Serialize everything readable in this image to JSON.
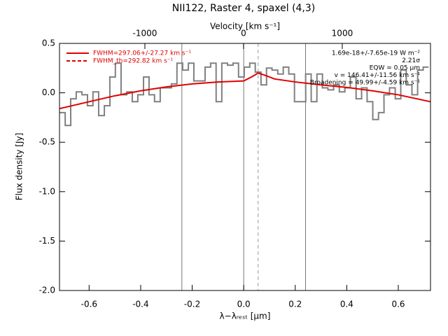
{
  "chart_data": {
    "type": "step",
    "title": "NII122, Raster 4, spaxel (4,3)",
    "xlabel": "λ−λᵣₑₛₜ [μm]",
    "ylabel": "Flux density [Jy]",
    "x2label": "Velocity [km s⁻¹]",
    "xlim": [
      -0.715,
      0.725
    ],
    "xticks": [
      -0.6,
      -0.4,
      -0.2,
      {
        "value": 0,
        "label": "0.0"
      },
      0.2,
      0.4,
      0.6
    ],
    "ylim": [
      -2.0,
      0.5
    ],
    "yticks": [
      0.5,
      {
        "value": 0,
        "label": "0.0"
      },
      -0.5,
      {
        "value": -1,
        "label": "-1.0"
      },
      -1.5,
      {
        "value": -2,
        "label": "-2.0"
      }
    ],
    "x2lim": [
      -1865,
      1894
    ],
    "x2ticks": [
      -1000,
      0,
      1000
    ],
    "series": [
      {
        "color": "#808080",
        "x": [
          -0.704,
          -0.682,
          -0.661,
          -0.639,
          -0.617,
          -0.596,
          -0.574,
          -0.552,
          -0.53,
          -0.509,
          -0.487,
          -0.465,
          -0.443,
          -0.422,
          -0.4,
          -0.378,
          -0.357,
          -0.335,
          -0.313,
          -0.291,
          -0.27,
          -0.248,
          -0.226,
          -0.204,
          -0.183,
          -0.161,
          -0.139,
          -0.118,
          -0.096,
          -0.074,
          -0.052,
          -0.031,
          -0.009,
          0.013,
          0.034,
          0.056,
          0.078,
          0.099,
          0.121,
          0.143,
          0.164,
          0.186,
          0.208,
          0.23,
          0.251,
          0.273,
          0.295,
          0.316,
          0.338,
          0.36,
          0.382,
          0.403,
          0.425,
          0.447,
          0.468,
          0.49,
          0.512,
          0.534,
          0.555,
          0.577,
          0.599,
          0.62,
          0.642,
          0.664,
          0.686,
          0.707
        ],
        "values": [
          -0.2,
          -0.33,
          -0.06,
          0.01,
          -0.02,
          -0.13,
          0.01,
          -0.23,
          -0.13,
          0.16,
          0.3,
          -0.02,
          0.01,
          -0.09,
          -0.02,
          0.16,
          -0.02,
          -0.09,
          0.05,
          0.05,
          0.09,
          0.3,
          0.23,
          0.3,
          0.12,
          0.12,
          0.26,
          0.3,
          -0.09,
          0.3,
          0.28,
          0.3,
          0.16,
          0.26,
          0.3,
          0.21,
          0.08,
          0.25,
          0.23,
          0.19,
          0.26,
          0.19,
          -0.09,
          -0.09,
          0.19,
          -0.09,
          0.19,
          0.05,
          0.03,
          0.08,
          0.01,
          0.05,
          0.16,
          -0.06,
          0.05,
          -0.09,
          -0.27,
          -0.2,
          -0.02,
          0.05,
          -0.06,
          0.23,
          0.08,
          -0.02,
          0.23,
          0.26
        ]
      },
      {
        "name": "FWHM=297.06+/-27.27 km s⁻¹",
        "color": "#e00000",
        "style": "solid",
        "x": [
          -0.715,
          -0.6,
          -0.5,
          -0.4,
          -0.3,
          -0.2,
          -0.1,
          0,
          0.03,
          0.056,
          0.08,
          0.12,
          0.2,
          0.3,
          0.4,
          0.5,
          0.6,
          0.725
        ],
        "values": [
          -0.16,
          -0.09,
          -0.03,
          0.02,
          0.06,
          0.09,
          0.11,
          0.12,
          0.16,
          0.2,
          0.18,
          0.14,
          0.11,
          0.08,
          0.055,
          0.02,
          -0.02,
          -0.09
        ]
      },
      {
        "name": "FWHM_th=292.82 km s⁻¹",
        "color": "#e00000",
        "style": "dashed"
      }
    ],
    "vlines": [
      -0.24,
      0,
      0.24
    ],
    "dashed_vline": 0.056,
    "annotations": [
      "1.69e-18+/-7.65e-19 W m⁻²",
      "2.21σ",
      "EQW = 0.05 μm",
      "v = 146.41+/-11.56 km s⁻¹",
      "Broadening = 49.99+/-4.59 km s⁻¹"
    ]
  }
}
